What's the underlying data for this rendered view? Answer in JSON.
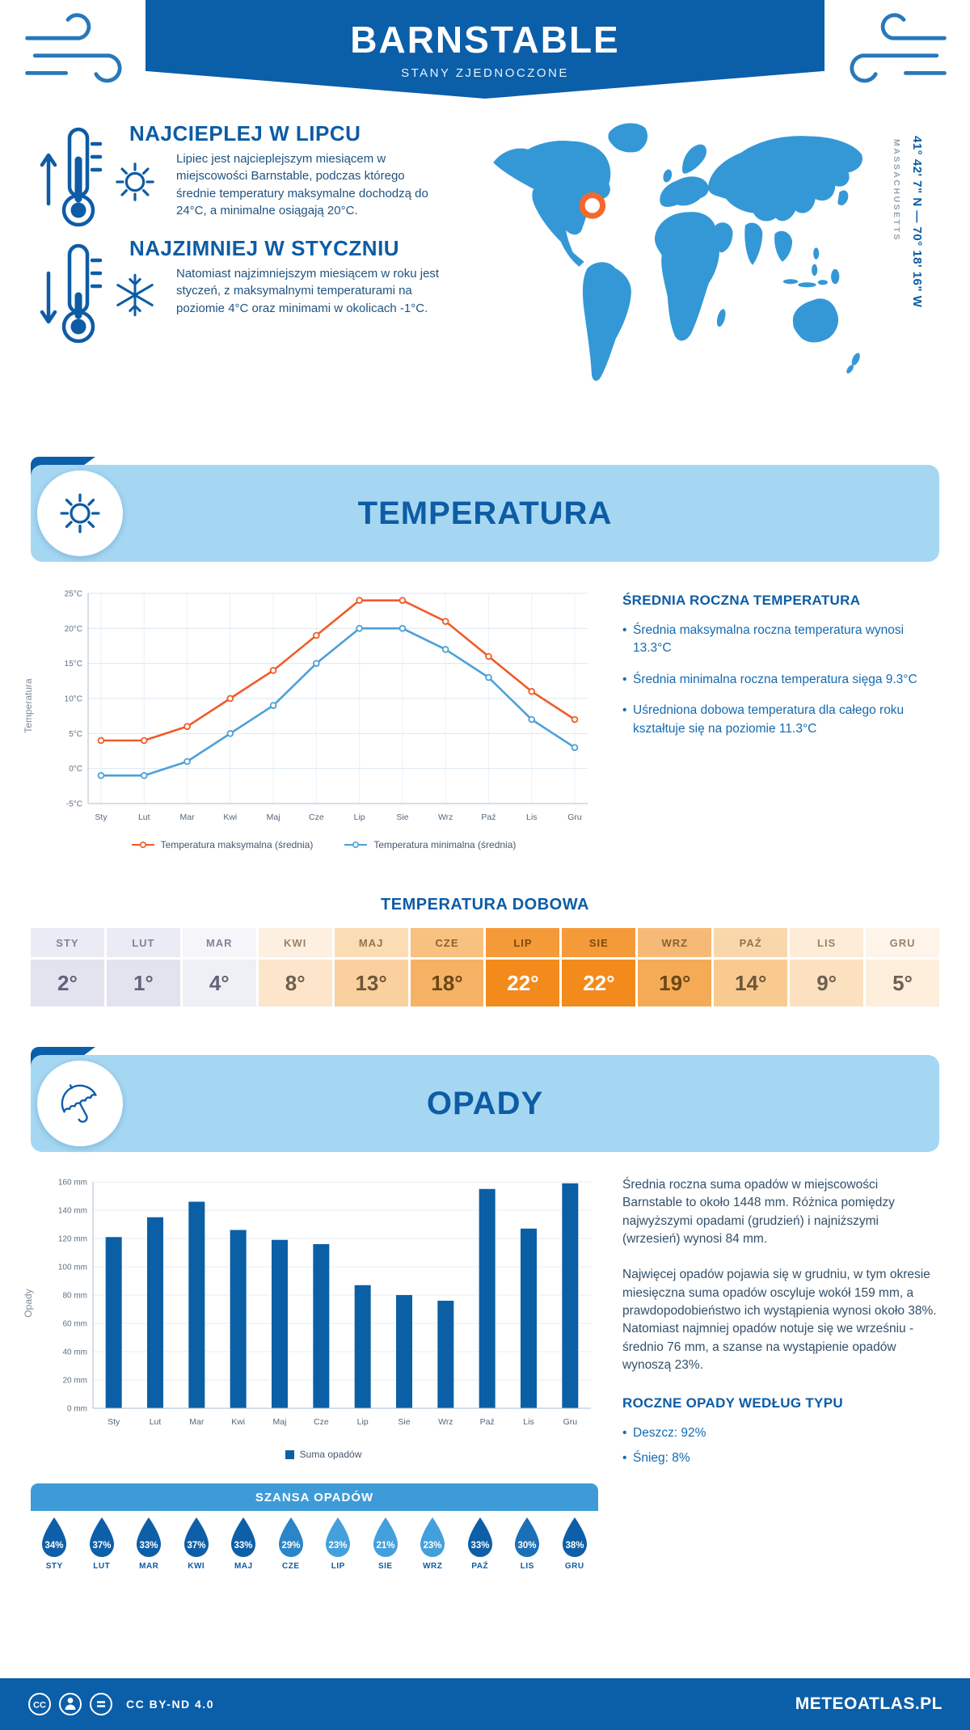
{
  "header": {
    "title": "BARNSTABLE",
    "subtitle": "STANY ZJEDNOCZONE"
  },
  "highlights": {
    "warm": {
      "title": "NAJCIEPLEJ W LIPCU",
      "text": "Lipiec jest najcieplejszym miesiącem w miejscowości Barnstable, podczas którego średnie temperatury maksymalne dochodzą do 24°C, a minimalne osiągają 20°C."
    },
    "cold": {
      "title": "NAJZIMNIEJ W STYCZNIU",
      "text": "Natomiast najzimniejszym miesiącem w roku jest styczeń, z maksymalnymi temperaturami na poziomie 4°C oraz minimami w okolicach -1°C."
    }
  },
  "map": {
    "coordinates": "41° 42' 7\" N — 70° 18' 16\" W",
    "region": "MASSACHUSETTS",
    "land_color": "#3498d7",
    "marker_color": "#f2692e"
  },
  "temperature_section": {
    "band_title": "TEMPERATURA",
    "summary_title": "ŚREDNIA ROCZNA TEMPERATURA",
    "bullets": [
      "Średnia maksymalna roczna temperatura wynosi 13.3°C",
      "Średnia minimalna roczna temperatura sięga 9.3°C",
      "Uśredniona dobowa temperatura dla całego roku kształtuje się na poziomie 11.3°C"
    ],
    "daily_title": "TEMPERATURA DOBOWA"
  },
  "daily_temp": {
    "columns": [
      {
        "month": "STY",
        "value": "2°",
        "header_bg": "#ebebf5",
        "value_bg": "#e3e3ef",
        "label_color": "#82829a",
        "value_color": "#62627c"
      },
      {
        "month": "LUT",
        "value": "1°",
        "header_bg": "#ebebf5",
        "value_bg": "#e3e3ef",
        "label_color": "#82829a",
        "value_color": "#62627c"
      },
      {
        "month": "MAR",
        "value": "4°",
        "header_bg": "#f6f6fa",
        "value_bg": "#eff0f6",
        "label_color": "#82829a",
        "value_color": "#62627c"
      },
      {
        "month": "KWI",
        "value": "8°",
        "header_bg": "#fdf0e1",
        "value_bg": "#fce5cb",
        "label_color": "#9a8268",
        "value_color": "#6e6050"
      },
      {
        "month": "MAJ",
        "value": "13°",
        "header_bg": "#fbdcb5",
        "value_bg": "#f9d09e",
        "label_color": "#93744c",
        "value_color": "#6e5638"
      },
      {
        "month": "CZE",
        "value": "18°",
        "header_bg": "#f8c180",
        "value_bg": "#f6b264",
        "label_color": "#8a6230",
        "value_color": "#6b4716"
      },
      {
        "month": "LIP",
        "value": "22°",
        "header_bg": "#f49a39",
        "value_bg": "#f28b1b",
        "label_color": "#7c4a10",
        "value_color": "#ffffff"
      },
      {
        "month": "SIE",
        "value": "22°",
        "header_bg": "#f49a39",
        "value_bg": "#f28b1b",
        "label_color": "#7c4a10",
        "value_color": "#ffffff"
      },
      {
        "month": "WRZ",
        "value": "19°",
        "header_bg": "#f7ba76",
        "value_bg": "#f5ab55",
        "label_color": "#8a6230",
        "value_color": "#6b4716"
      },
      {
        "month": "PAŹ",
        "value": "14°",
        "header_bg": "#fad7aa",
        "value_bg": "#f8ca90",
        "label_color": "#93744c",
        "value_color": "#6e5638"
      },
      {
        "month": "LIS",
        "value": "9°",
        "header_bg": "#fdecd8",
        "value_bg": "#fbe1c0",
        "label_color": "#9a8268",
        "value_color": "#6e6050"
      },
      {
        "month": "GRU",
        "value": "5°",
        "header_bg": "#fef4ea",
        "value_bg": "#fdeedc",
        "label_color": "#9a8268",
        "value_color": "#6e6050"
      }
    ]
  },
  "precipitation_section": {
    "band_title": "OPADY",
    "paragraph1": "Średnia roczna suma opadów w miejscowości Barnstable to około 1448 mm. Różnica pomiędzy najwyższymi opadami (grudzień) i najniższymi (wrzesień) wynosi 84 mm.",
    "paragraph2": "Najwięcej opadów pojawia się w grudniu, w tym okresie miesięczna suma opadów oscyluje wokół 159 mm, a prawdopodobieństwo ich wystąpienia wynosi około 38%. Natomiast najmniej opadów notuje się we wrześniu - średnio 76 mm, a szanse na wystąpienie opadów wynoszą 23%.",
    "type_title": "ROCZNE OPADY WEDŁUG TYPU",
    "type_bullets": [
      "Deszcz: 92%",
      "Śnieg: 8%"
    ]
  },
  "precip_chance": {
    "title": "SZANSA OPADÓW",
    "months": [
      "STY",
      "LUT",
      "MAR",
      "KWI",
      "MAJ",
      "CZE",
      "LIP",
      "SIE",
      "WRZ",
      "PAŹ",
      "LIS",
      "GRU"
    ],
    "values": [
      "34%",
      "37%",
      "33%",
      "37%",
      "33%",
      "29%",
      "23%",
      "21%",
      "23%",
      "33%",
      "30%",
      "38%"
    ],
    "drop_colors": [
      "#0d5fa8",
      "#0d5fa8",
      "#0d5fa8",
      "#0d5fa8",
      "#0d5fa8",
      "#2a85c9",
      "#44a0dc",
      "#44a0dc",
      "#44a0dc",
      "#0d5fa8",
      "#1b70b5",
      "#0d5fa8"
    ]
  },
  "chart_data": [
    {
      "type": "line",
      "title": "TEMPERATURA",
      "categories": [
        "Sty",
        "Lut",
        "Mar",
        "Kwi",
        "Maj",
        "Cze",
        "Lip",
        "Sie",
        "Wrz",
        "Paź",
        "Lis",
        "Gru"
      ],
      "series": [
        {
          "name": "Temperatura maksymalna (średnia)",
          "color": "#f15b27",
          "values": [
            4,
            4,
            6,
            10,
            14,
            19,
            24,
            24,
            21,
            16,
            11,
            7
          ]
        },
        {
          "name": "Temperatura minimalna (średnia)",
          "color": "#4da0d8",
          "values": [
            -1,
            -1,
            1,
            5,
            9,
            15,
            20,
            20,
            17,
            13,
            7,
            3
          ]
        }
      ],
      "xlabel": "",
      "ylabel": "Temperatura",
      "ylim": [
        -5,
        25
      ],
      "ytick_step": 5,
      "ytick_suffix": "°C",
      "grid": true,
      "legend_position": "bottom"
    },
    {
      "type": "bar",
      "title": "OPADY",
      "categories": [
        "Sty",
        "Lut",
        "Mar",
        "Kwi",
        "Maj",
        "Cze",
        "Lip",
        "Sie",
        "Wrz",
        "Paź",
        "Lis",
        "Gru"
      ],
      "series": [
        {
          "name": "Suma opadów",
          "color": "#0b5fa5",
          "values": [
            121,
            135,
            146,
            126,
            119,
            116,
            87,
            80,
            76,
            155,
            127,
            159
          ]
        }
      ],
      "xlabel": "",
      "ylabel": "Opady",
      "ylim": [
        0,
        160
      ],
      "ytick_step": 20,
      "ytick_suffix": " mm",
      "grid": true,
      "legend_position": "bottom"
    }
  ],
  "footer": {
    "cc_glyph": "CC",
    "license": "CC BY-ND 4.0",
    "brand": "METEOATLAS.PL"
  }
}
